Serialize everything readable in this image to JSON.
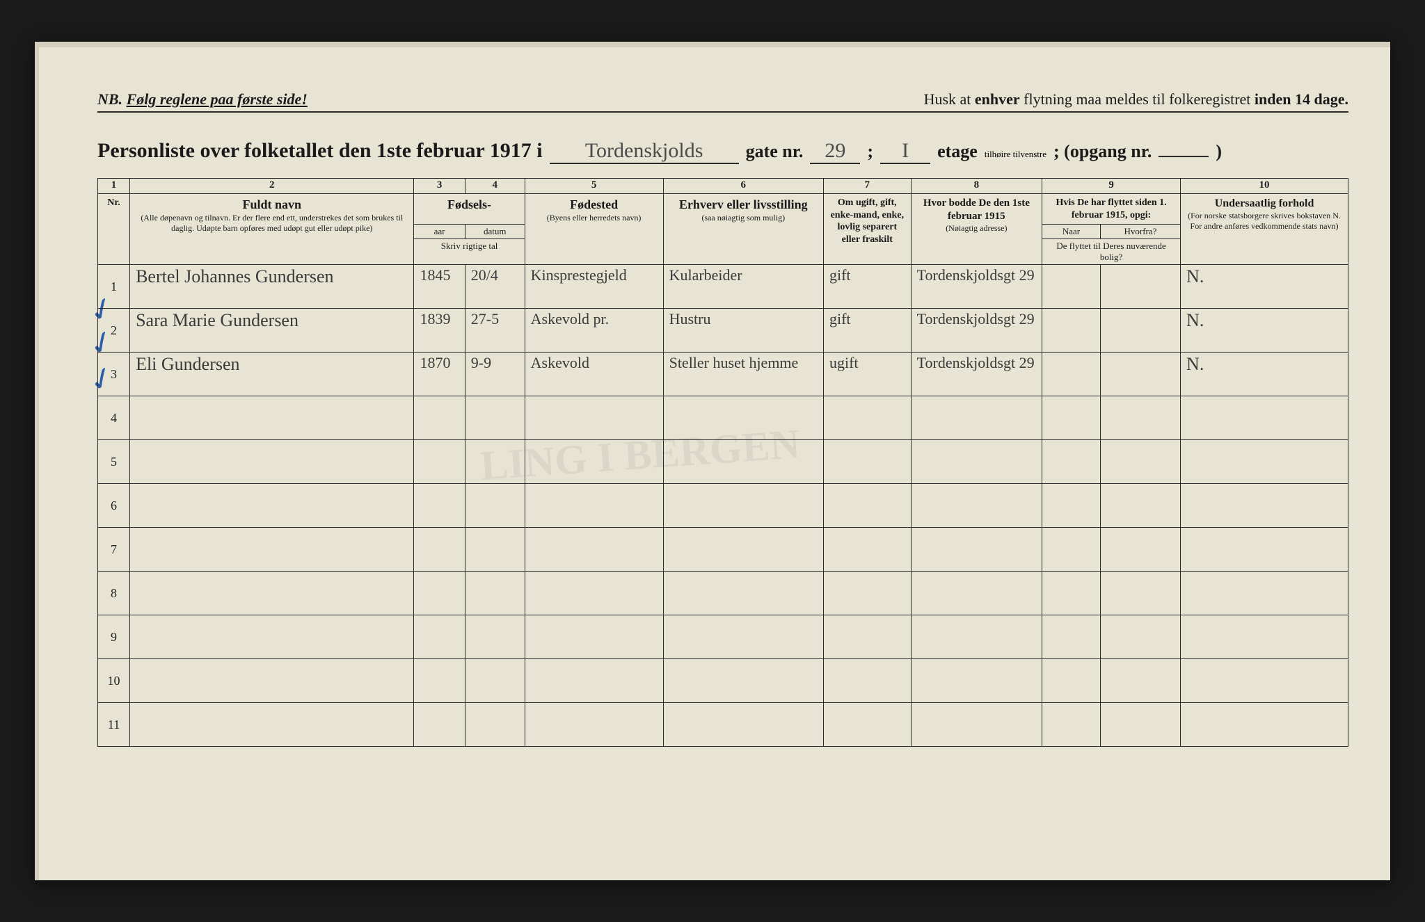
{
  "topline": {
    "nb_prefix": "NB.",
    "nb_text": "Følg reglene paa første side!",
    "reminder_pre": "Husk at ",
    "reminder_bold1": "enhver",
    "reminder_mid": " flytning maa meldes til folkeregistret ",
    "reminder_bold2": "inden 14 dage."
  },
  "title": {
    "main": "Personliste over folketallet den 1ste februar 1917 i",
    "street_value": "Tordenskjolds",
    "gate_label": "gate nr.",
    "gate_value": "29",
    "semicolon": ";",
    "etage_value": "I",
    "etage_label": "etage",
    "etage_sub": "tilhøire\ntilvenstre",
    "opgang_label": "; (opgang nr.",
    "opgang_value": "",
    "close_paren": ")"
  },
  "columns": {
    "c1": "1",
    "c2": "2",
    "c3": "3",
    "c4": "4",
    "c5": "5",
    "c6": "6",
    "c7": "7",
    "c8": "8",
    "c9": "9",
    "c10": "10",
    "nr": "Nr.",
    "name_big": "Fuldt navn",
    "name_note": "(Alle døpenavn og tilnavn. Er der flere end ett, understrekes det som brukes til daglig. Udøpte barn opføres med udøpt gut eller udøpt pike)",
    "birth_big": "Fødsels-",
    "birth_aar": "aar",
    "birth_datum": "datum",
    "birth_note": "Skriv rigtige tal",
    "place_big": "Fødested",
    "place_note": "(Byens eller herredets navn)",
    "occ_big": "Erhverv eller livsstilling",
    "occ_note": "(saa nøiagtig som mulig)",
    "marital": "Om ugift, gift, enke-mand, enke, lovlig separert eller fraskilt",
    "addr_big": "Hvor bodde De den 1ste februar 1915",
    "addr_note": "(Nøiagtig adresse)",
    "moved_top": "Hvis De har flyttet siden 1. februar 1915, opgi:",
    "moved_naar": "Naar",
    "moved_hvor": "Hvorfra?",
    "moved_note": "De flyttet til Deres nuværende bolig?",
    "nat_big": "Undersaatlig forhold",
    "nat_note": "(For norske statsborgere skrives bokstaven N. For andre anføres vedkommende stats navn)"
  },
  "rows": [
    {
      "nr": "1",
      "name": "Bertel Johannes Gundersen",
      "aar": "1845",
      "datum": "20/4",
      "place": "Kinsprestegjeld",
      "occ": "Kularbeider",
      "marital": "gift",
      "addr": "Tordenskjoldsgt 29",
      "moved_n": "",
      "moved_h": "",
      "nat": "N."
    },
    {
      "nr": "2",
      "name": "Sara Marie Gundersen",
      "aar": "1839",
      "datum": "27-5",
      "place": "Askevold pr.",
      "occ": "Hustru",
      "marital": "gift",
      "addr": "Tordenskjoldsgt 29",
      "moved_n": "",
      "moved_h": "",
      "nat": "N."
    },
    {
      "nr": "3",
      "name": "Eli Gundersen",
      "aar": "1870",
      "datum": "9-9",
      "place": "Askevold",
      "occ": "Steller huset hjemme",
      "marital": "ugift",
      "addr": "Tordenskjoldsgt 29",
      "moved_n": "",
      "moved_h": "",
      "nat": "N."
    },
    {
      "nr": "4",
      "name": "",
      "aar": "",
      "datum": "",
      "place": "",
      "occ": "",
      "marital": "",
      "addr": "",
      "moved_n": "",
      "moved_h": "",
      "nat": ""
    },
    {
      "nr": "5",
      "name": "",
      "aar": "",
      "datum": "",
      "place": "",
      "occ": "",
      "marital": "",
      "addr": "",
      "moved_n": "",
      "moved_h": "",
      "nat": ""
    },
    {
      "nr": "6",
      "name": "",
      "aar": "",
      "datum": "",
      "place": "",
      "occ": "",
      "marital": "",
      "addr": "",
      "moved_n": "",
      "moved_h": "",
      "nat": ""
    },
    {
      "nr": "7",
      "name": "",
      "aar": "",
      "datum": "",
      "place": "",
      "occ": "",
      "marital": "",
      "addr": "",
      "moved_n": "",
      "moved_h": "",
      "nat": ""
    },
    {
      "nr": "8",
      "name": "",
      "aar": "",
      "datum": "",
      "place": "",
      "occ": "",
      "marital": "",
      "addr": "",
      "moved_n": "",
      "moved_h": "",
      "nat": ""
    },
    {
      "nr": "9",
      "name": "",
      "aar": "",
      "datum": "",
      "place": "",
      "occ": "",
      "marital": "",
      "addr": "",
      "moved_n": "",
      "moved_h": "",
      "nat": ""
    },
    {
      "nr": "10",
      "name": "",
      "aar": "",
      "datum": "",
      "place": "",
      "occ": "",
      "marital": "",
      "addr": "",
      "moved_n": "",
      "moved_h": "",
      "nat": ""
    },
    {
      "nr": "11",
      "name": "",
      "aar": "",
      "datum": "",
      "place": "",
      "occ": "",
      "marital": "",
      "addr": "",
      "moved_n": "",
      "moved_h": "",
      "nat": ""
    }
  ],
  "widths": {
    "nr": 44,
    "name": 390,
    "aar": 70,
    "datum": 82,
    "place": 190,
    "occ": 220,
    "marital": 120,
    "addr": 180,
    "moved_n": 80,
    "moved_h": 110,
    "nat": 230
  },
  "colors": {
    "paper": "#e8e4d4",
    "ink": "#1a1a1a",
    "handwriting": "#3a3a3a",
    "blue": "#2a5fa8"
  }
}
